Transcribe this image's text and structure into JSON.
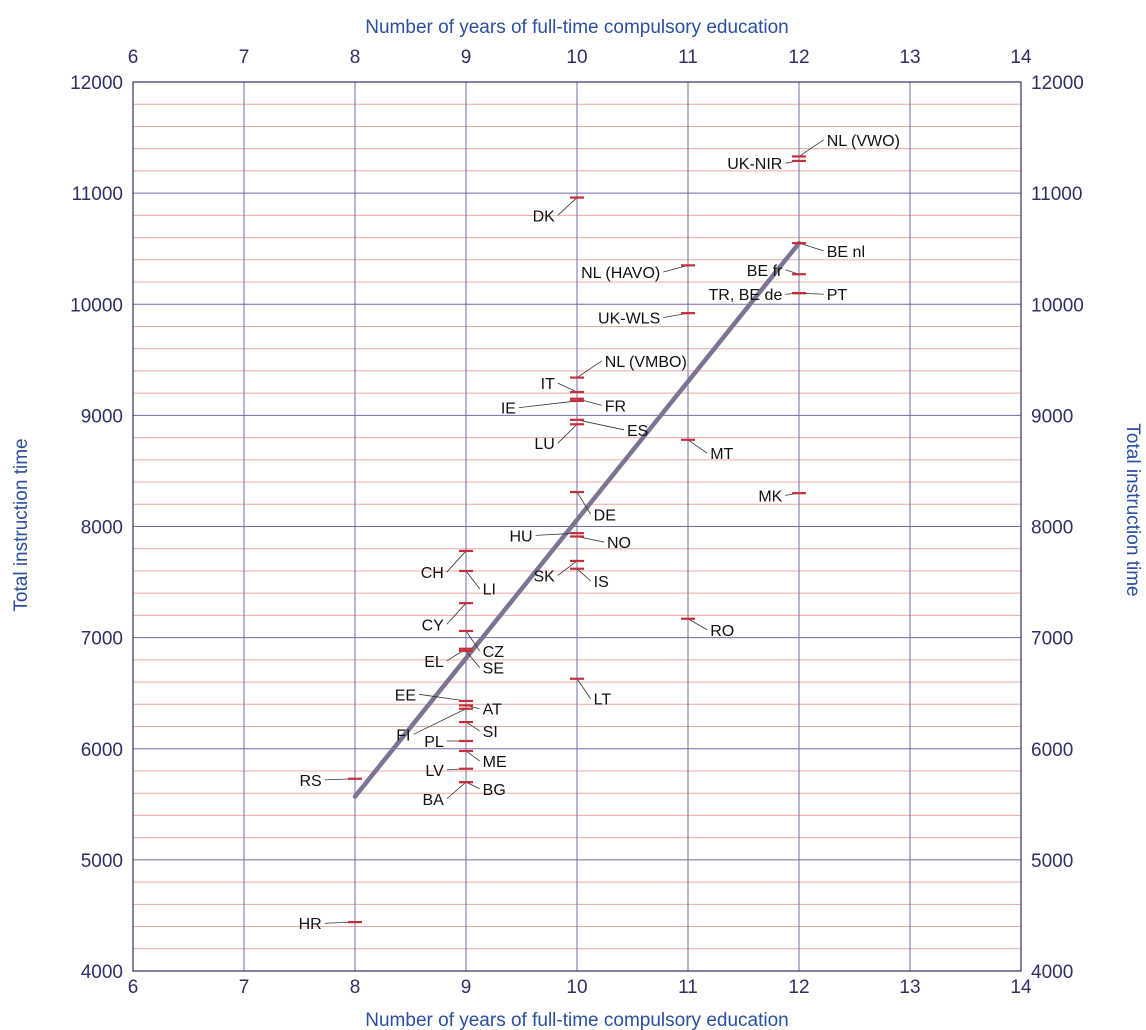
{
  "chart_data": {
    "type": "scatter",
    "xlabel": "Number of years of full-time compulsory education",
    "ylabel": "Total instruction time",
    "xlim": [
      6,
      14
    ],
    "ylim": [
      4000,
      12000
    ],
    "x_ticks": [
      6,
      7,
      8,
      9,
      10,
      11,
      12,
      13,
      14
    ],
    "y_ticks": [
      4000,
      5000,
      6000,
      7000,
      8000,
      9000,
      10000,
      11000,
      12000
    ],
    "y_minor_step": 200,
    "grid": true,
    "colors": {
      "axis_title": "#2a4f9c",
      "tick_text": "#2f2f66",
      "major_grid": "#6f6fa6",
      "minor_grid": "#f0a8a8",
      "marker": "#c4303a",
      "trend_line": "#7d7494",
      "leader": "#333333"
    },
    "trend_line": {
      "x": [
        8,
        12
      ],
      "y": [
        5570,
        10550
      ]
    },
    "points": [
      {
        "label": "NL (VWO)",
        "x": 12,
        "y": 11330,
        "lx": 12.25,
        "ly": 11480,
        "anchor": "start"
      },
      {
        "label": "UK-NIR",
        "x": 12,
        "y": 11290,
        "lx": 11.85,
        "ly": 11270,
        "anchor": "end"
      },
      {
        "label": "DK",
        "x": 10,
        "y": 10960,
        "lx": 9.8,
        "ly": 10800,
        "anchor": "end"
      },
      {
        "label": "BE nl",
        "x": 12,
        "y": 10550,
        "lx": 12.25,
        "ly": 10480,
        "anchor": "start"
      },
      {
        "label": "NL (HAVO)",
        "x": 11,
        "y": 10350,
        "lx": 10.75,
        "ly": 10290,
        "anchor": "end"
      },
      {
        "label": "BE fr",
        "x": 12,
        "y": 10270,
        "lx": 11.85,
        "ly": 10310,
        "anchor": "end"
      },
      {
        "label": "TR, BE de",
        "x": 12,
        "y": 10100,
        "lx": 11.85,
        "ly": 10090,
        "anchor": "end"
      },
      {
        "label": "PT",
        "x": 12,
        "y": 10100,
        "lx": 12.25,
        "ly": 10090,
        "anchor": "start"
      },
      {
        "label": "UK-WLS",
        "x": 11,
        "y": 9920,
        "lx": 10.75,
        "ly": 9880,
        "anchor": "end"
      },
      {
        "label": "NL (VMBO)",
        "x": 10,
        "y": 9340,
        "lx": 10.25,
        "ly": 9490,
        "anchor": "start"
      },
      {
        "label": "IT",
        "x": 10,
        "y": 9210,
        "lx": 9.8,
        "ly": 9290,
        "anchor": "end"
      },
      {
        "label": "FR",
        "x": 10,
        "y": 9150,
        "lx": 10.25,
        "ly": 9090,
        "anchor": "start"
      },
      {
        "label": "IE",
        "x": 10,
        "y": 9130,
        "lx": 9.45,
        "ly": 9070,
        "anchor": "end"
      },
      {
        "label": "ES",
        "x": 10,
        "y": 8960,
        "lx": 10.45,
        "ly": 8870,
        "anchor": "start"
      },
      {
        "label": "LU",
        "x": 10,
        "y": 8920,
        "lx": 9.8,
        "ly": 8750,
        "anchor": "end"
      },
      {
        "label": "MT",
        "x": 11,
        "y": 8780,
        "lx": 11.2,
        "ly": 8660,
        "anchor": "start"
      },
      {
        "label": "DE",
        "x": 10,
        "y": 8310,
        "lx": 10.15,
        "ly": 8110,
        "anchor": "start"
      },
      {
        "label": "MK",
        "x": 12,
        "y": 8300,
        "lx": 11.85,
        "ly": 8280,
        "anchor": "end"
      },
      {
        "label": "HU",
        "x": 10,
        "y": 7940,
        "lx": 9.6,
        "ly": 7920,
        "anchor": "end"
      },
      {
        "label": "NO",
        "x": 10,
        "y": 7910,
        "lx": 10.27,
        "ly": 7860,
        "anchor": "start"
      },
      {
        "label": "CH",
        "x": 9,
        "y": 7780,
        "lx": 8.8,
        "ly": 7590,
        "anchor": "end"
      },
      {
        "label": "SK",
        "x": 10,
        "y": 7690,
        "lx": 9.8,
        "ly": 7560,
        "anchor": "end"
      },
      {
        "label": "IS",
        "x": 10,
        "y": 7620,
        "lx": 10.15,
        "ly": 7510,
        "anchor": "start"
      },
      {
        "label": "LI",
        "x": 9,
        "y": 7600,
        "lx": 9.15,
        "ly": 7440,
        "anchor": "start"
      },
      {
        "label": "CY",
        "x": 9,
        "y": 7310,
        "lx": 8.8,
        "ly": 7120,
        "anchor": "end"
      },
      {
        "label": "RO",
        "x": 11,
        "y": 7170,
        "lx": 11.2,
        "ly": 7070,
        "anchor": "start"
      },
      {
        "label": "CZ",
        "x": 9,
        "y": 7060,
        "lx": 9.15,
        "ly": 6880,
        "anchor": "start"
      },
      {
        "label": "EL",
        "x": 9,
        "y": 6900,
        "lx": 8.8,
        "ly": 6790,
        "anchor": "end"
      },
      {
        "label": "SE",
        "x": 9,
        "y": 6880,
        "lx": 9.15,
        "ly": 6730,
        "anchor": "start"
      },
      {
        "label": "LT",
        "x": 10,
        "y": 6630,
        "lx": 10.15,
        "ly": 6450,
        "anchor": "start"
      },
      {
        "label": "EE",
        "x": 9,
        "y": 6430,
        "lx": 8.55,
        "ly": 6490,
        "anchor": "end"
      },
      {
        "label": "AT",
        "x": 9,
        "y": 6390,
        "lx": 9.15,
        "ly": 6360,
        "anchor": "start"
      },
      {
        "label": "FI",
        "x": 9,
        "y": 6360,
        "lx": 8.5,
        "ly": 6130,
        "anchor": "end"
      },
      {
        "label": "SI",
        "x": 9,
        "y": 6240,
        "lx": 9.15,
        "ly": 6160,
        "anchor": "start"
      },
      {
        "label": "PL",
        "x": 9,
        "y": 6070,
        "lx": 8.8,
        "ly": 6070,
        "anchor": "end"
      },
      {
        "label": "ME",
        "x": 9,
        "y": 5980,
        "lx": 9.15,
        "ly": 5890,
        "anchor": "start"
      },
      {
        "label": "LV",
        "x": 9,
        "y": 5820,
        "lx": 8.8,
        "ly": 5810,
        "anchor": "end"
      },
      {
        "label": "RS",
        "x": 8,
        "y": 5730,
        "lx": 7.7,
        "ly": 5720,
        "anchor": "end"
      },
      {
        "label": "BG",
        "x": 9,
        "y": 5700,
        "lx": 9.15,
        "ly": 5640,
        "anchor": "start"
      },
      {
        "label": "BA",
        "x": 9,
        "y": 5700,
        "lx": 8.8,
        "ly": 5550,
        "anchor": "end"
      },
      {
        "label": "HR",
        "x": 8,
        "y": 4440,
        "lx": 7.7,
        "ly": 4430,
        "anchor": "end"
      }
    ]
  }
}
